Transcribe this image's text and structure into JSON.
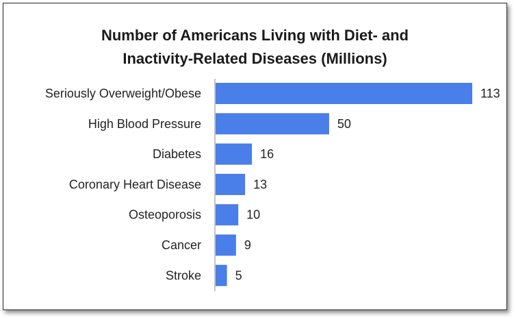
{
  "chart_data": {
    "type": "bar",
    "orientation": "horizontal",
    "title_lines": [
      "Number of Americans Living with Diet- and",
      "Inactivity-Related Diseases (Millions)"
    ],
    "categories": [
      "Seriously Overweight/Obese",
      "High Blood Pressure",
      "Diabetes",
      "Coronary Heart Disease",
      "Osteoporosis",
      "Cancer",
      "Stroke"
    ],
    "values": [
      113,
      50,
      16,
      13,
      10,
      9,
      5
    ],
    "data_labels": [
      "113",
      "50",
      "16",
      "13",
      "10",
      "9",
      "5"
    ],
    "xlim": [
      0,
      113
    ],
    "grid": false,
    "legend": "none",
    "bar_color": "#4a7ee8"
  }
}
